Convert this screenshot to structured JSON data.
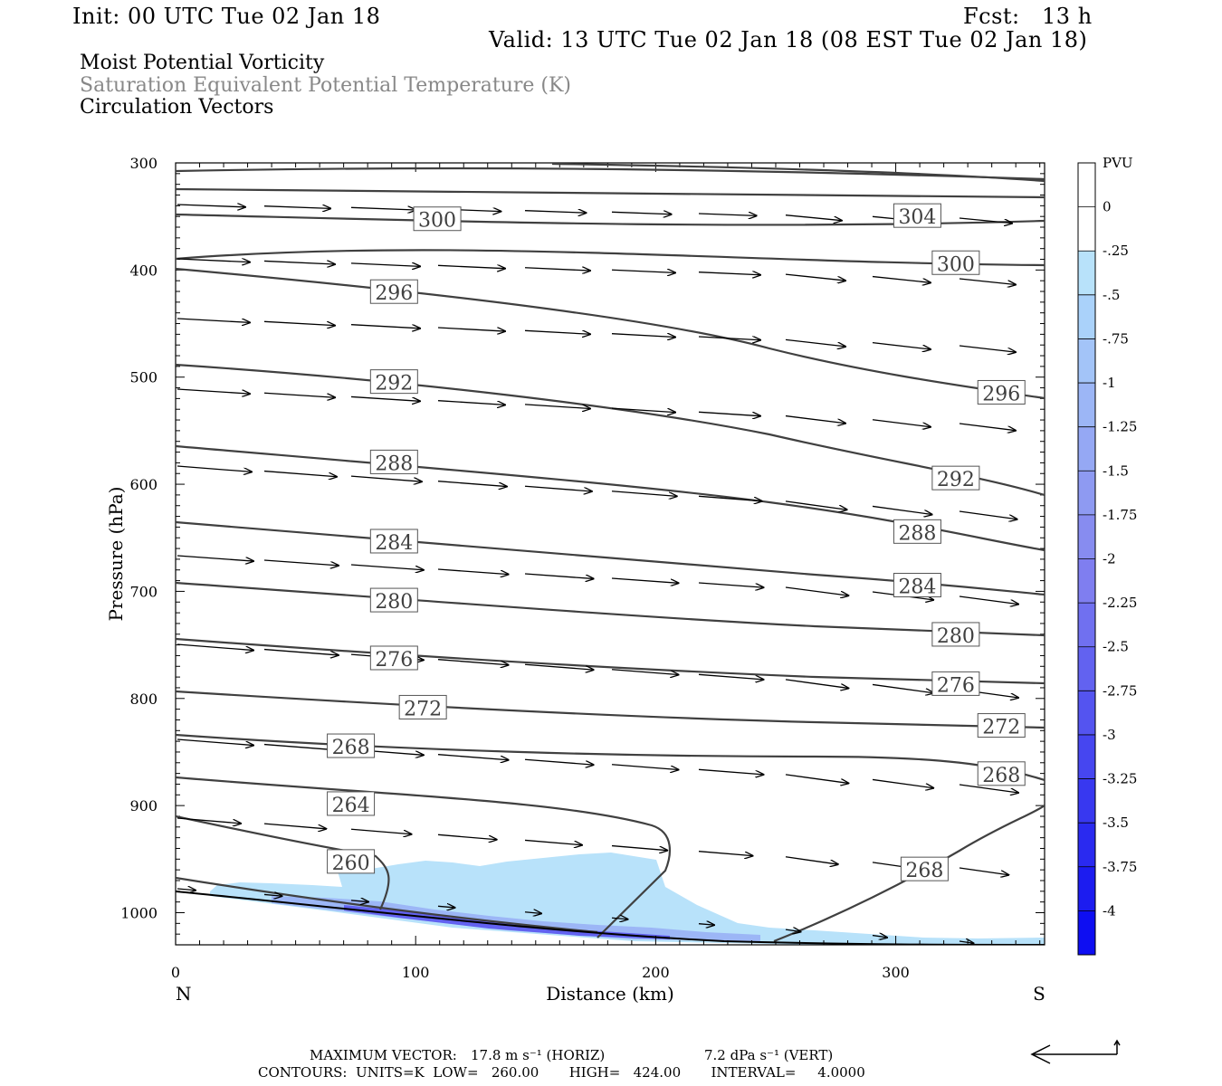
{
  "header": {
    "init": "Init: 00 UTC Tue 02 Jan 18",
    "fcst": "Fcst:   13 h",
    "valid": "Valid: 13 UTC Tue 02 Jan 18 (08 EST Tue 02 Jan 18)",
    "field1": "Moist Potential Vorticity",
    "field2": "Saturation Equivalent Potential Temperature (K)",
    "field3": "Circulation Vectors"
  },
  "footer": {
    "max_vector_label": "MAXIMUM VECTOR:",
    "max_vector_horiz": "17.8 m s⁻¹ (HORIZ)",
    "max_vector_vert": "7.2 dPa s⁻¹ (VERT)",
    "contours": "CONTOURS:  UNITS=K  LOW=   260.00       HIGH=   424.00       INTERVAL=     4.0000"
  },
  "colors": {
    "contour": "#404040",
    "vector": "#000000",
    "pv_light": "#b8e2fa",
    "pv_mid": "#8a8af0",
    "pv_dark": "#3030f0"
  },
  "chart_data": {
    "type": "contour",
    "xlabel": "Distance (km)",
    "ylabel": "Pressure (hPa)",
    "xlim": [
      0,
      362
    ],
    "ylim": [
      300,
      1030
    ],
    "x_ticks": [
      0,
      100,
      200,
      300
    ],
    "y_ticks": [
      300,
      400,
      500,
      600,
      700,
      800,
      900,
      1000
    ],
    "x_end_labels": {
      "left": "N",
      "right": "S"
    },
    "colorbar": {
      "unit": "PVU",
      "levels": [
        "0",
        "-.25",
        "-.5",
        "-.75",
        "-1",
        "-1.25",
        "-1.5",
        "-1.75",
        "-2",
        "-2.25",
        "-2.5",
        "-2.75",
        "-3",
        "-3.25",
        "-3.5",
        "-3.75",
        "-4"
      ],
      "colors": [
        "#ffffff",
        "#ffffff",
        "#b8e2fa",
        "#aad2fa",
        "#a3c4f8",
        "#9cb6f6",
        "#95a8f4",
        "#8e9af2",
        "#878cf0",
        "#7f7ef0",
        "#7070f0",
        "#6262f0",
        "#5454f0",
        "#4646f0",
        "#3838f0",
        "#2a2af0",
        "#1c1cf0",
        "#0e0ef2"
      ]
    },
    "contour_labels": [
      {
        "text": "304",
        "x": 309,
        "p": 350
      },
      {
        "text": "300",
        "x": 109,
        "p": 353
      },
      {
        "text": "300",
        "x": 325,
        "p": 394
      },
      {
        "text": "296",
        "x": 91,
        "p": 421
      },
      {
        "text": "296",
        "x": 344,
        "p": 515
      },
      {
        "text": "292",
        "x": 91,
        "p": 505
      },
      {
        "text": "292",
        "x": 325,
        "p": 595
      },
      {
        "text": "288",
        "x": 91,
        "p": 580
      },
      {
        "text": "288",
        "x": 309,
        "p": 645
      },
      {
        "text": "284",
        "x": 91,
        "p": 654
      },
      {
        "text": "284",
        "x": 309,
        "p": 695
      },
      {
        "text": "280",
        "x": 91,
        "p": 709
      },
      {
        "text": "280",
        "x": 325,
        "p": 741
      },
      {
        "text": "276",
        "x": 91,
        "p": 763
      },
      {
        "text": "276",
        "x": 325,
        "p": 787
      },
      {
        "text": "272",
        "x": 103,
        "p": 809
      },
      {
        "text": "272",
        "x": 344,
        "p": 826
      },
      {
        "text": "268",
        "x": 73,
        "p": 845
      },
      {
        "text": "268",
        "x": 344,
        "p": 871
      },
      {
        "text": "264",
        "x": 73,
        "p": 899
      },
      {
        "text": "260",
        "x": 73,
        "p": 953
      },
      {
        "text": "268",
        "x": 312,
        "p": 960
      }
    ]
  }
}
